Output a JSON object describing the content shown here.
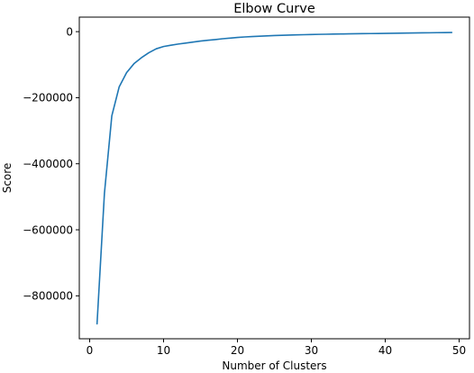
{
  "chart_data": {
    "type": "line",
    "title": "Elbow Curve",
    "xlabel": "Number of Clusters",
    "ylabel": "Score",
    "xlim": [
      -1.4,
      51.4
    ],
    "ylim": [
      -930000,
      44000
    ],
    "x_ticks": [
      0,
      10,
      20,
      30,
      40,
      50
    ],
    "y_ticks": [
      0,
      -200000,
      -400000,
      -600000,
      -800000
    ],
    "y_tick_labels": [
      "0",
      "−200000",
      "−400000",
      "−600000",
      "−800000"
    ],
    "grid": false,
    "series": [
      {
        "color": "#1f77b4",
        "x": [
          1,
          2,
          3,
          4,
          5,
          6,
          7,
          8,
          9,
          10,
          11,
          12,
          13,
          14,
          15,
          16,
          17,
          18,
          19,
          20,
          21,
          22,
          23,
          24,
          25,
          26,
          27,
          28,
          29,
          30,
          31,
          32,
          33,
          34,
          35,
          36,
          37,
          38,
          39,
          40,
          41,
          42,
          43,
          44,
          45,
          46,
          47,
          48,
          49
        ],
        "y": [
          -885000,
          -490000,
          -255000,
          -167000,
          -124000,
          -97000,
          -79000,
          -64000,
          -52000,
          -45000,
          -41000,
          -37500,
          -34500,
          -31500,
          -28500,
          -26000,
          -24000,
          -21500,
          -19500,
          -17500,
          -16000,
          -14800,
          -13800,
          -12800,
          -11800,
          -11000,
          -10300,
          -9700,
          -9200,
          -8700,
          -8200,
          -7800,
          -7400,
          -7000,
          -6700,
          -6400,
          -6100,
          -5800,
          -5500,
          -5200,
          -4900,
          -4600,
          -4300,
          -4000,
          -3700,
          -3400,
          -3100,
          -2800,
          -2500
        ]
      }
    ]
  }
}
